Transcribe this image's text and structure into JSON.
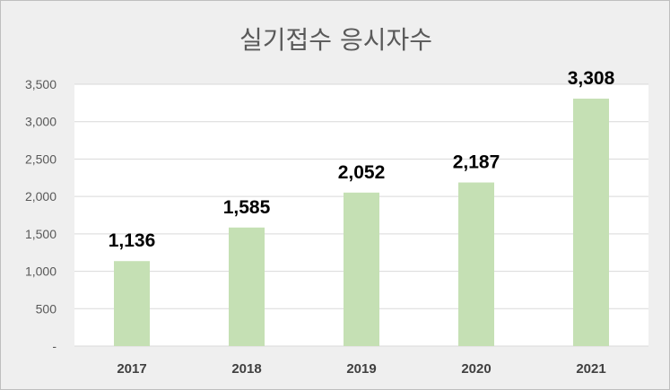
{
  "chart_data": {
    "type": "bar",
    "title": "실기접수 응시자수",
    "categories": [
      "2017",
      "2018",
      "2019",
      "2020",
      "2021"
    ],
    "values": [
      1136,
      1585,
      2052,
      2187,
      3308
    ],
    "data_labels": [
      "1,136",
      "1,585",
      "2,052",
      "2,187",
      "3,308"
    ],
    "ylim": [
      0,
      3500
    ],
    "y_ticks": [
      0,
      500,
      1000,
      1500,
      2000,
      2500,
      3000,
      3500
    ],
    "y_tick_labels": [
      "-",
      "500",
      "1,000",
      "1,500",
      "2,000",
      "2,500",
      "3,000",
      "3,500"
    ],
    "grid": true,
    "legend": "none",
    "colors": {
      "bar": "#c5e0b4",
      "plot_background": "#ffffff",
      "chart_background": "#efefef",
      "gridline": "#d9d9d9"
    }
  }
}
